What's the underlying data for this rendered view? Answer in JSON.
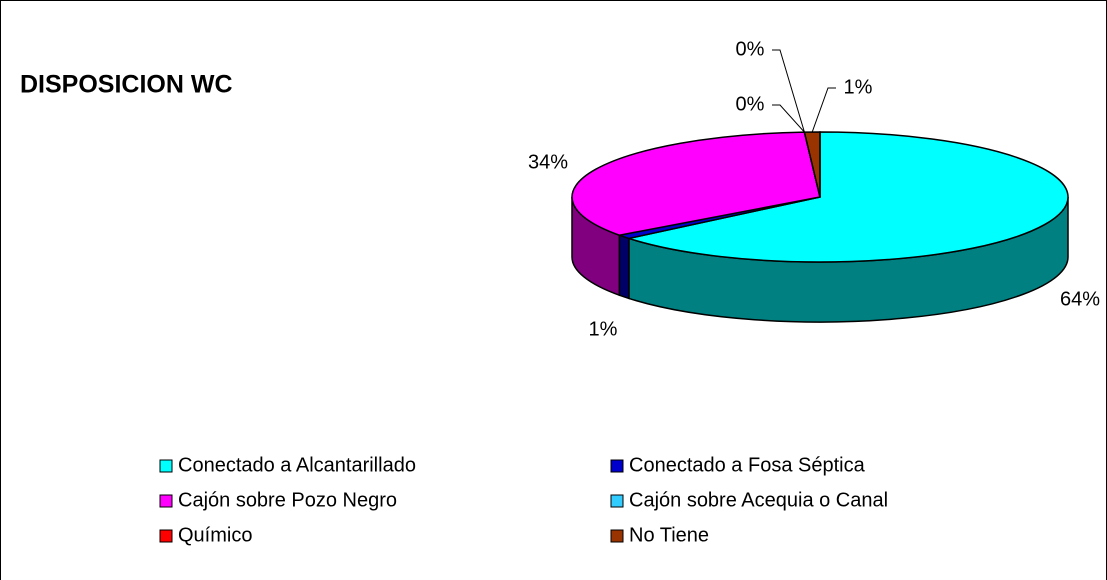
{
  "chart_data": {
    "type": "pie3d",
    "title": "DISPOSICION WC",
    "categories": [
      "Conectado a  Alcantarillado",
      "Conectado a Fosa Séptica",
      "Cajón sobre Pozo Negro",
      "Cajón sobre Acequia o Canal",
      "Químico",
      "No Tiene"
    ],
    "values": [
      64,
      1,
      34,
      0,
      0,
      1
    ],
    "value_labels": [
      "64%",
      "1%",
      "34%",
      "0%",
      "0%",
      "1%"
    ],
    "colors": [
      "#00FFFF",
      "#0000CC",
      "#FF00FF",
      "#33CCFF",
      "#FF0000",
      "#993300"
    ]
  }
}
